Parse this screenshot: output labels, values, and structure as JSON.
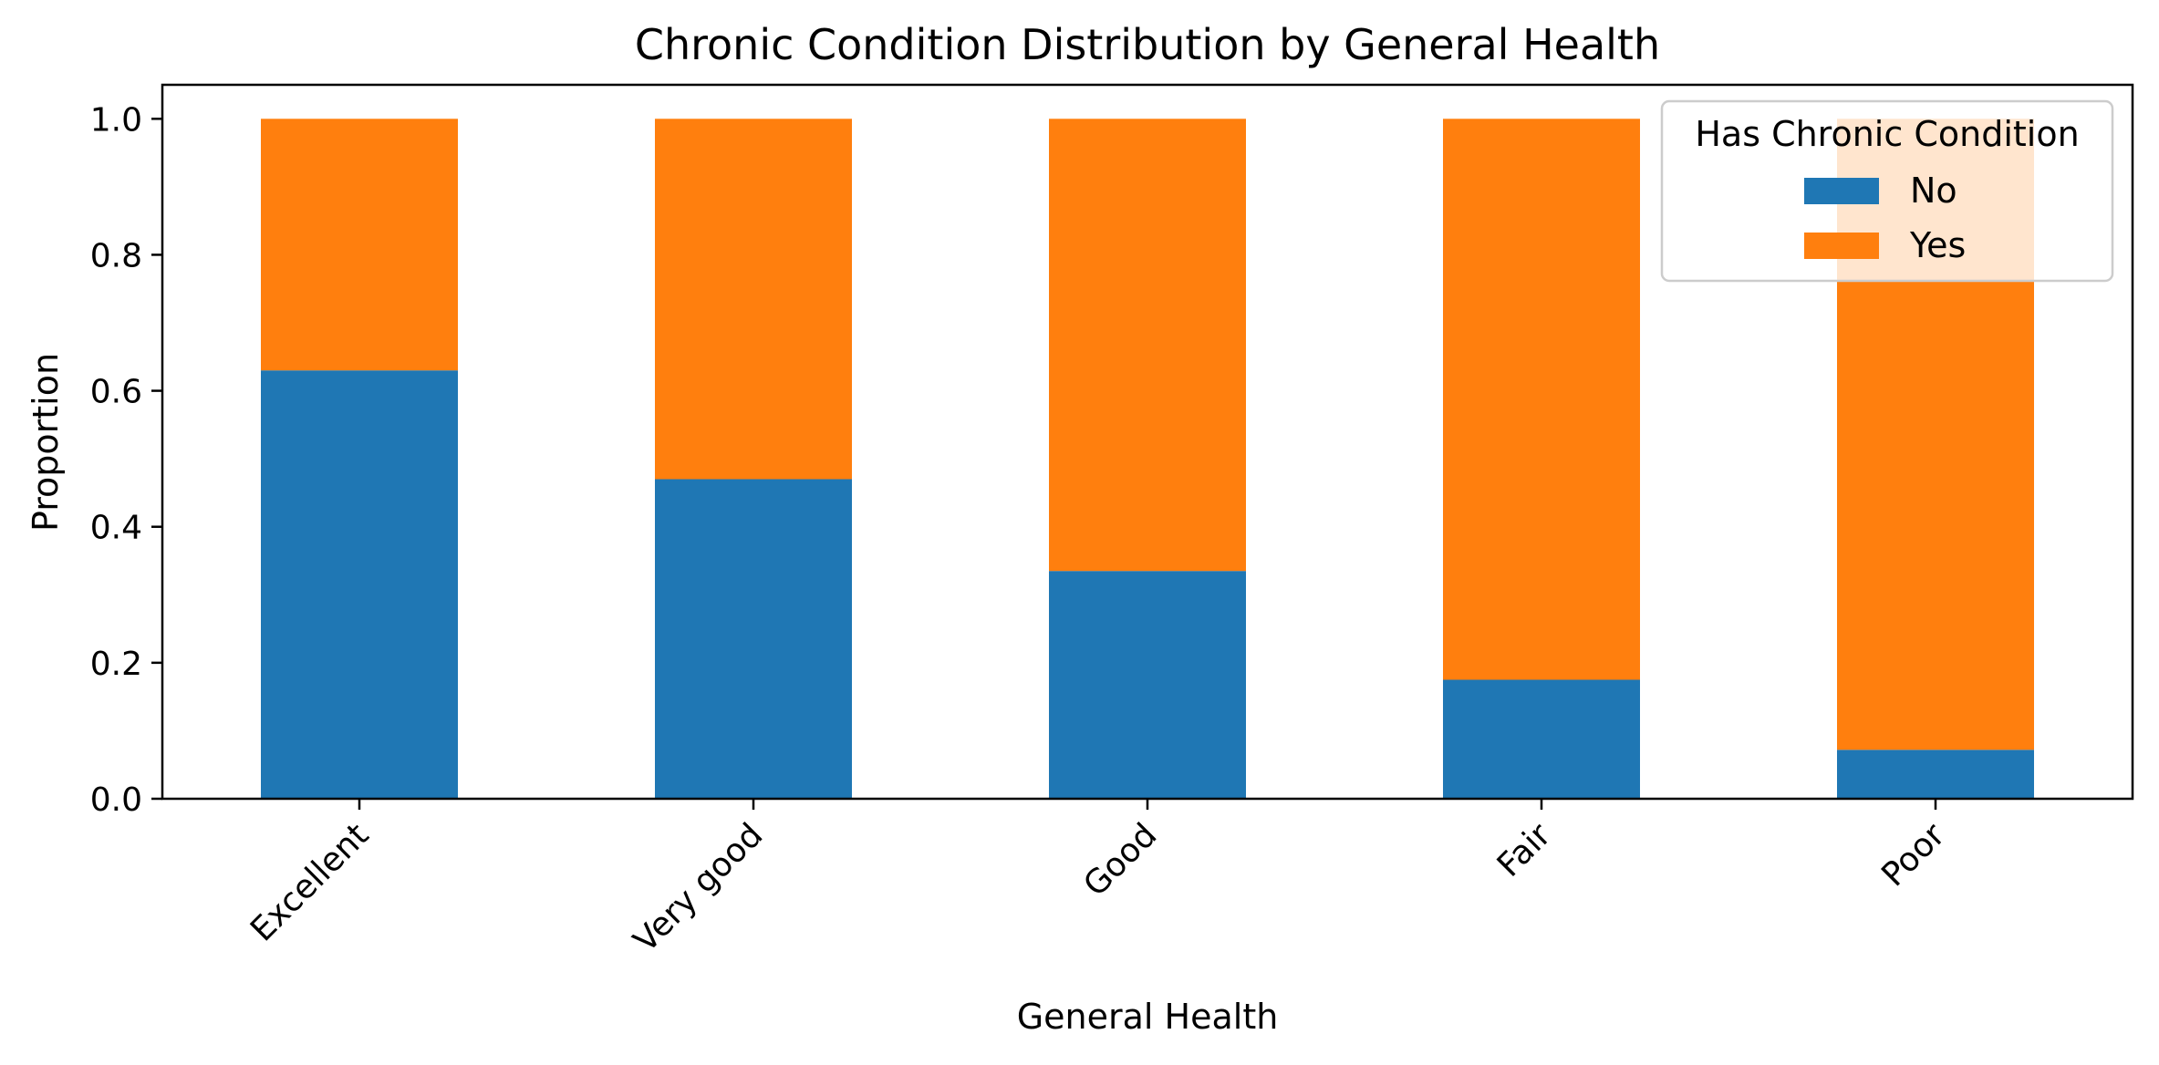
{
  "chart_data": {
    "type": "bar",
    "stacked": true,
    "title": "Chronic Condition Distribution by General Health",
    "xlabel": "General Health",
    "ylabel": "Proportion",
    "categories": [
      "Excellent",
      "Very good",
      "Good",
      "Fair",
      "Poor"
    ],
    "series": [
      {
        "name": "No",
        "color": "#1f77b4",
        "values": [
          0.63,
          0.47,
          0.335,
          0.175,
          0.072
        ]
      },
      {
        "name": "Yes",
        "color": "#ff7f0e",
        "values": [
          0.37,
          0.53,
          0.665,
          0.825,
          0.928
        ]
      }
    ],
    "ylim": [
      0,
      1.05
    ],
    "yticks": [
      "0.0",
      "0.2",
      "0.4",
      "0.6",
      "0.8",
      "1.0"
    ],
    "ytick_values": [
      0,
      0.2,
      0.4,
      0.6,
      0.8,
      1.0
    ],
    "grid": false,
    "legend": {
      "title": "Has Chronic Condition",
      "placement": "top-right"
    }
  }
}
